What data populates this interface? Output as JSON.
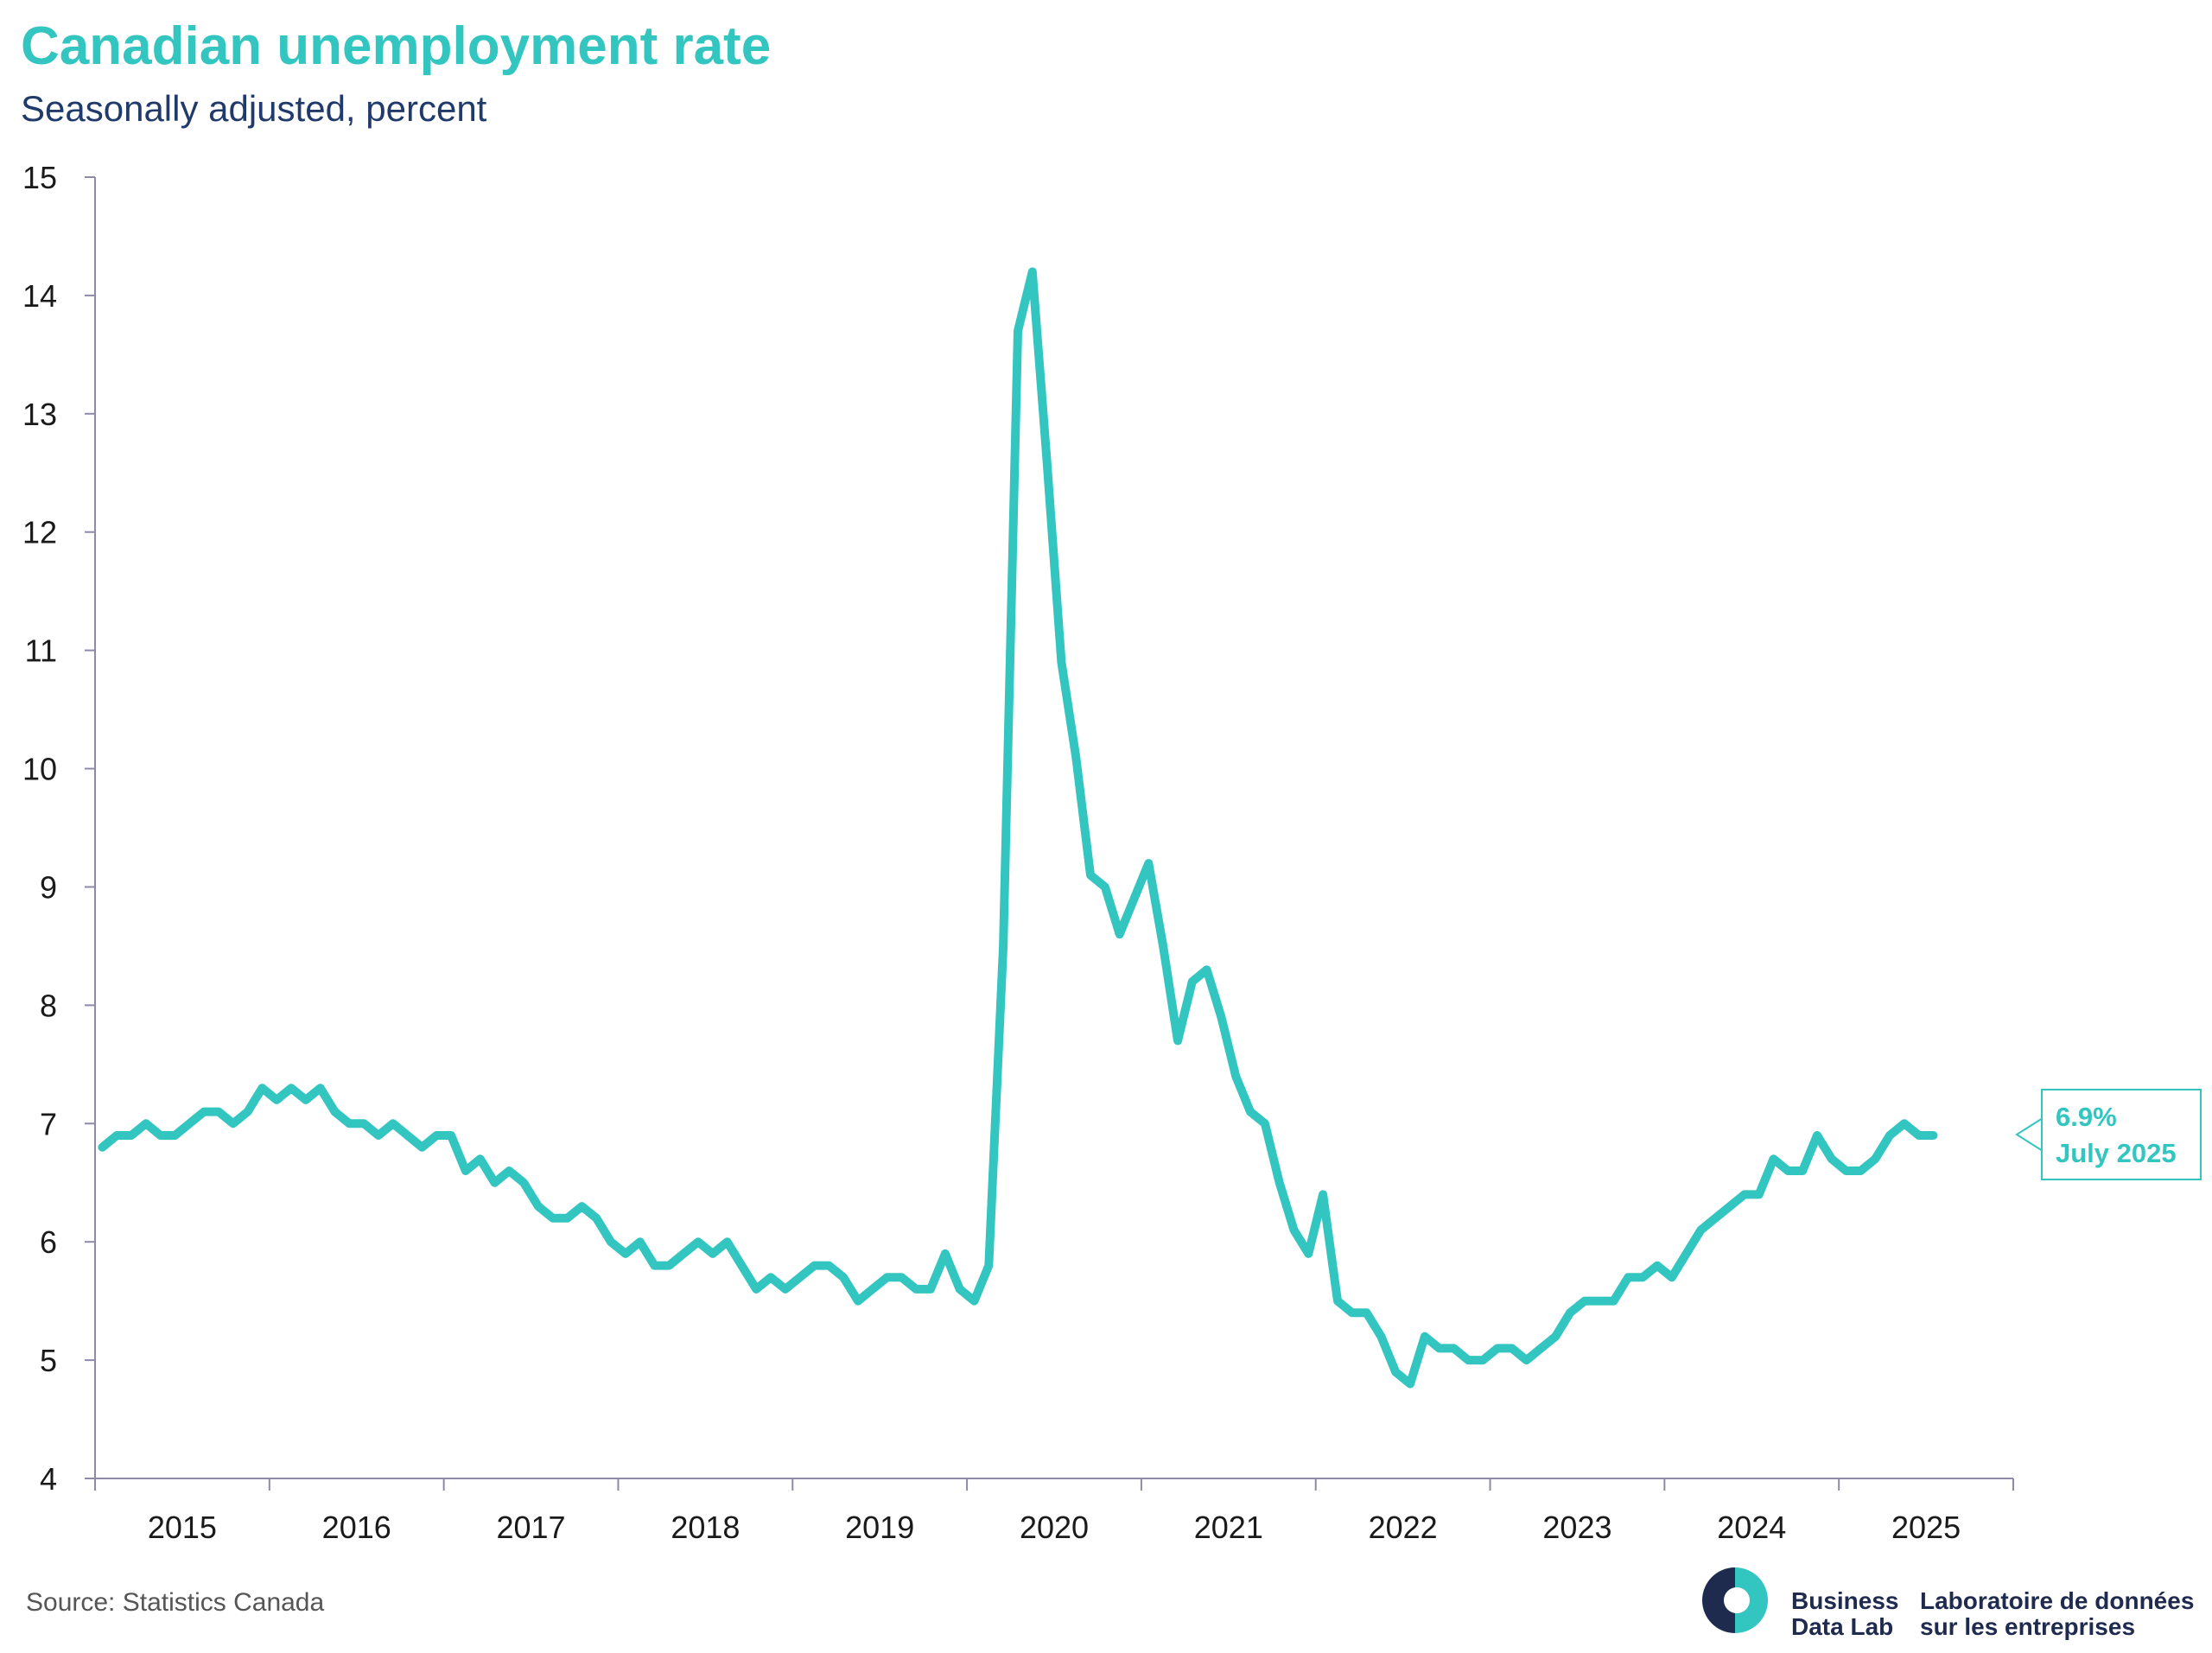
{
  "title": "Canadian unemployment rate",
  "subtitle": "Seasonally adjusted, percent",
  "source": "Source: Statistics Canada",
  "callout": {
    "value": "6.9%",
    "date": "July 2025"
  },
  "logo": {
    "en_line1": "Business",
    "en_line2": "Data Lab",
    "fr_line1": "Laboratoire de données",
    "fr_line2": "sur les entreprises",
    "icon": "business-data-lab-logo"
  },
  "colors": {
    "line": "#33c5c0",
    "axis": "#8e8aa8",
    "text": "#1a1a1a",
    "navy": "#1f2a4f"
  },
  "chart_data": {
    "type": "line",
    "title": "Canadian unemployment rate",
    "subtitle": "Seasonally adjusted, percent",
    "ylim": [
      4,
      15
    ],
    "yticks": [
      "4",
      "5",
      "6",
      "7",
      "8",
      "9",
      "10",
      "11",
      "12",
      "13",
      "14",
      "15"
    ],
    "xtick_labels": [
      "2015",
      "2016",
      "2017",
      "2018",
      "2019",
      "2020",
      "2021",
      "2022",
      "2023",
      "2024",
      "2025"
    ],
    "x_start": "2015-01",
    "x_end": "2025-07",
    "grid": false,
    "legend": "none",
    "series": [
      {
        "values": [
          6.8,
          6.9,
          6.9,
          7.0,
          6.9,
          6.9,
          7.0,
          7.1,
          7.1,
          7.0,
          7.1,
          7.3,
          7.2,
          7.3,
          7.2,
          7.3,
          7.1,
          7.0,
          7.0,
          6.9,
          7.0,
          6.9,
          6.8,
          6.9,
          6.9,
          6.6,
          6.7,
          6.5,
          6.6,
          6.5,
          6.3,
          6.2,
          6.2,
          6.3,
          6.2,
          6.0,
          5.9,
          6.0,
          5.8,
          5.8,
          5.9,
          6.0,
          5.9,
          6.0,
          5.8,
          5.6,
          5.7,
          5.6,
          5.7,
          5.8,
          5.8,
          5.7,
          5.5,
          5.6,
          5.7,
          5.7,
          5.6,
          5.6,
          5.9,
          5.6,
          5.5,
          5.8,
          8.5,
          13.7,
          14.2,
          12.6,
          10.9,
          10.1,
          9.1,
          9.0,
          8.6,
          8.9,
          9.2,
          8.5,
          7.7,
          8.2,
          8.3,
          7.9,
          7.4,
          7.1,
          7.0,
          6.5,
          6.1,
          5.9,
          6.4,
          5.5,
          5.4,
          5.4,
          5.2,
          4.9,
          4.8,
          5.2,
          5.1,
          5.1,
          5.0,
          5.0,
          5.1,
          5.1,
          5.0,
          5.1,
          5.2,
          5.4,
          5.5,
          5.5,
          5.5,
          5.7,
          5.7,
          5.8,
          5.7,
          5.9,
          6.1,
          6.2,
          6.3,
          6.4,
          6.4,
          6.7,
          6.6,
          6.6,
          6.9,
          6.7,
          6.6,
          6.6,
          6.7,
          6.9,
          7.0,
          6.9,
          6.9
        ]
      }
    ]
  }
}
